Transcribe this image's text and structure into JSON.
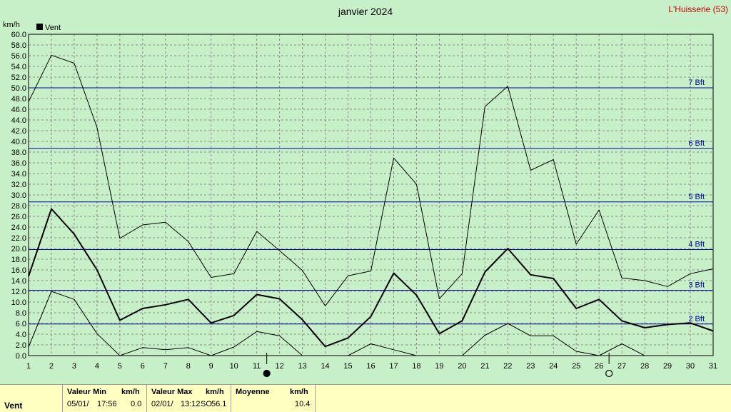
{
  "header": {
    "title": "janvier 2024",
    "station": "L'Huisserie (53)",
    "unit": "km/h",
    "legend": "Vent"
  },
  "chart_data": {
    "type": "line",
    "title": "janvier 2024",
    "ylabel": "km/h",
    "ylim": [
      0,
      60
    ],
    "ytick_step": 2,
    "x": [
      1,
      2,
      3,
      4,
      5,
      6,
      7,
      8,
      9,
      10,
      11,
      12,
      13,
      14,
      15,
      16,
      17,
      18,
      19,
      20,
      21,
      22,
      23,
      24,
      25,
      26,
      27,
      28,
      29,
      30,
      31
    ],
    "grid": true,
    "legend_position": "top-left",
    "series": [
      {
        "name": "Vent",
        "role": "mean",
        "values": [
          14.8,
          27.4,
          22.7,
          16.0,
          6.6,
          8.8,
          9.5,
          10.5,
          6.1,
          7.5,
          11.4,
          10.6,
          6.7,
          1.7,
          3.3,
          7.3,
          15.4,
          11.3,
          4.1,
          6.5,
          15.6,
          20.0,
          15.1,
          14.4,
          8.8,
          10.5,
          6.5,
          5.2,
          5.8,
          6.1,
          4.6
        ]
      },
      {
        "role": "max",
        "values": [
          47.4,
          56.1,
          54.6,
          42.6,
          21.9,
          24.4,
          24.9,
          21.3,
          14.6,
          15.3,
          23.2,
          19.6,
          15.9,
          9.3,
          14.9,
          15.8,
          36.9,
          32.0,
          10.6,
          15.3,
          46.5,
          50.3,
          34.6,
          36.6,
          20.8,
          27.2,
          14.5,
          14.0,
          12.9,
          15.3,
          16.2
        ]
      },
      {
        "role": "min",
        "values": [
          1.6,
          12.0,
          10.5,
          4.1,
          0.0,
          1.5,
          1.1,
          1.5,
          0.0,
          1.6,
          4.5,
          3.7,
          0.0,
          null,
          0.0,
          2.2,
          1.1,
          0.0,
          null,
          0.0,
          3.8,
          6.0,
          3.7,
          3.7,
          0.8,
          0.0,
          2.2,
          0.0,
          null,
          null,
          null
        ]
      }
    ],
    "beaufort_lines": [
      {
        "label": "2 Bft",
        "value": 5.9
      },
      {
        "label": "3 Bft",
        "value": 12.2
      },
      {
        "label": "4 Bft",
        "value": 19.8
      },
      {
        "label": "5 Bft",
        "value": 28.7
      },
      {
        "label": "6 Bft",
        "value": 38.7
      },
      {
        "label": "7 Bft",
        "value": 50.0
      }
    ],
    "moon_phases": [
      {
        "day": 11,
        "phase": "new"
      },
      {
        "day": 26,
        "phase": "full"
      }
    ],
    "colors": {
      "background": "#c8f0c8",
      "grid": "#8a8a8a",
      "beaufort": "#0000a0",
      "series": "#000000",
      "station": "#c00000",
      "footer": "#ffffc0"
    }
  },
  "footer": {
    "row_label": "Vent",
    "min": {
      "header": "Valeur Min",
      "unit": "km/h",
      "date": "05/01/",
      "time": "17:56",
      "value": "0.0"
    },
    "max": {
      "header": "Valeur Max",
      "unit": "km/h",
      "date": "02/01/",
      "time": "13:12",
      "dir": "SO",
      "value": "56.1"
    },
    "avg": {
      "header": "Moyenne",
      "unit": "km/h",
      "value": "10.4"
    }
  }
}
